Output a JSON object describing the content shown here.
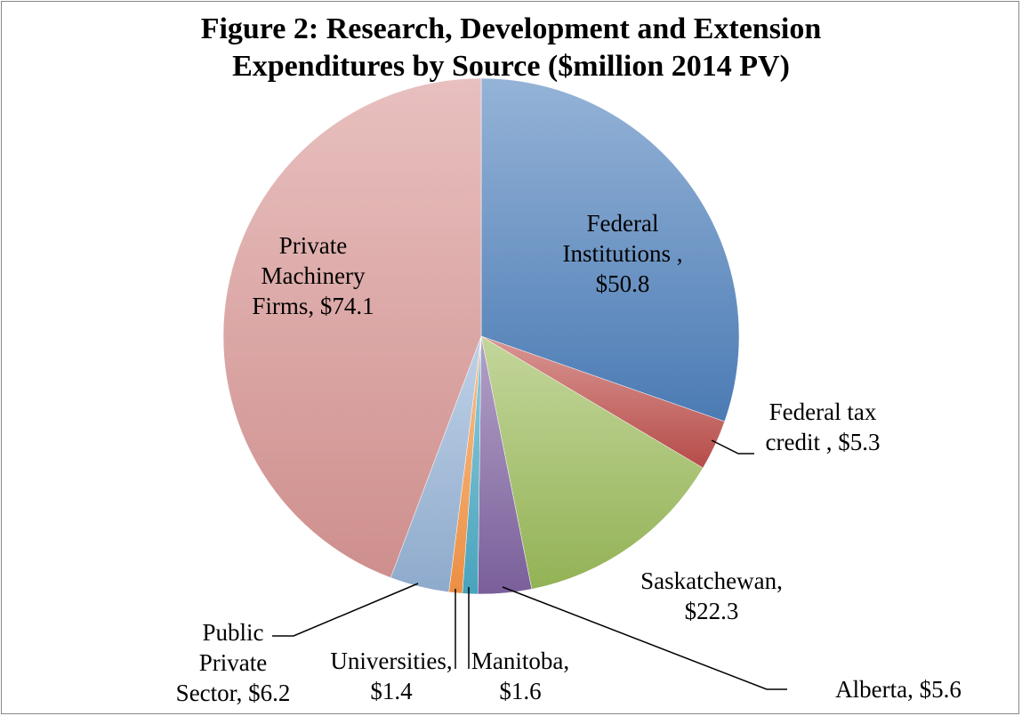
{
  "chart_data": {
    "type": "pie",
    "title": [
      "Figure 2: Research, Development and Extension",
      "Expenditures by Source  ($million  2014 PV)"
    ],
    "categories": [
      "Federal Institutions ,",
      "Federal tax credit ,",
      "Saskatchewan,",
      "Alberta,",
      "Manitoba,",
      "Universities,",
      "Public Private Sector,",
      "Private Machinery Firms,"
    ],
    "values": [
      50.8,
      5.3,
      22.3,
      5.6,
      1.6,
      1.4,
      6.2,
      74.1
    ],
    "value_labels": [
      "$50.8",
      "$5.3",
      "$22.3",
      "$5.6",
      "$1.6",
      "$1.4",
      "$6.2",
      "$74.1"
    ],
    "colors": [
      "#4f81bd",
      "#c0504d",
      "#9bbb59",
      "#8064a2",
      "#4bacc6",
      "#f79646",
      "#95b3d7",
      "#d99694"
    ]
  }
}
